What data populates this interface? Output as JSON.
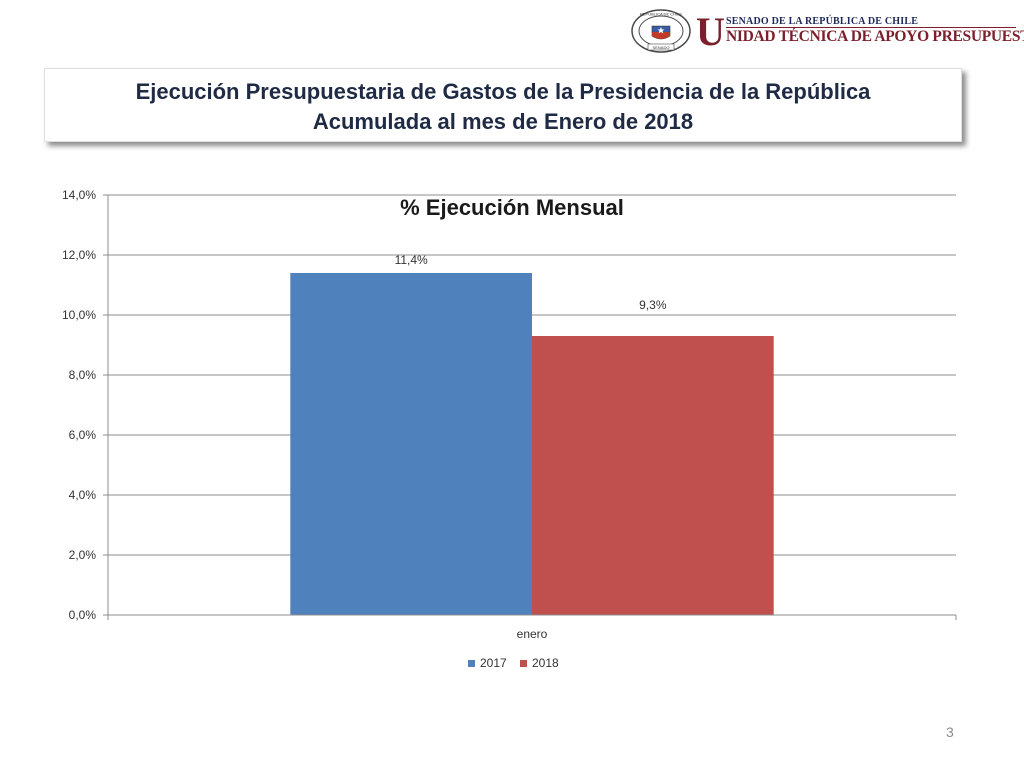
{
  "header": {
    "logo_small_text": "SENADO DE LA REPÚBLICA DE CHILE",
    "logo_big_letter": "U",
    "logo_main_text": "NIDAD TÉCNICA DE APOYO PRESUPUESTARIO",
    "seal_top_text": "REPÚBLICA DE CHILE",
    "seal_bottom_text": "SENADO"
  },
  "title": {
    "line1": "Ejecución Presupuestaria de Gastos de la Presidencia de la República",
    "line2": "Acumulada al mes de Enero de 2018"
  },
  "page_number": "3",
  "chart_data": {
    "type": "bar",
    "title": "% Ejecución Mensual",
    "categories": [
      "enero"
    ],
    "series": [
      {
        "name": "2017",
        "values": [
          11.4
        ],
        "color": "#4F81BD",
        "labels": [
          "11,4%"
        ]
      },
      {
        "name": "2018",
        "values": [
          9.3
        ],
        "color": "#C0504D",
        "labels": [
          "9,3%"
        ]
      }
    ],
    "ylim": [
      0,
      14
    ],
    "yticks": [
      "0,0%",
      "2,0%",
      "4,0%",
      "6,0%",
      "8,0%",
      "10,0%",
      "12,0%",
      "14,0%"
    ],
    "grid": true,
    "legend_position": "bottom"
  }
}
